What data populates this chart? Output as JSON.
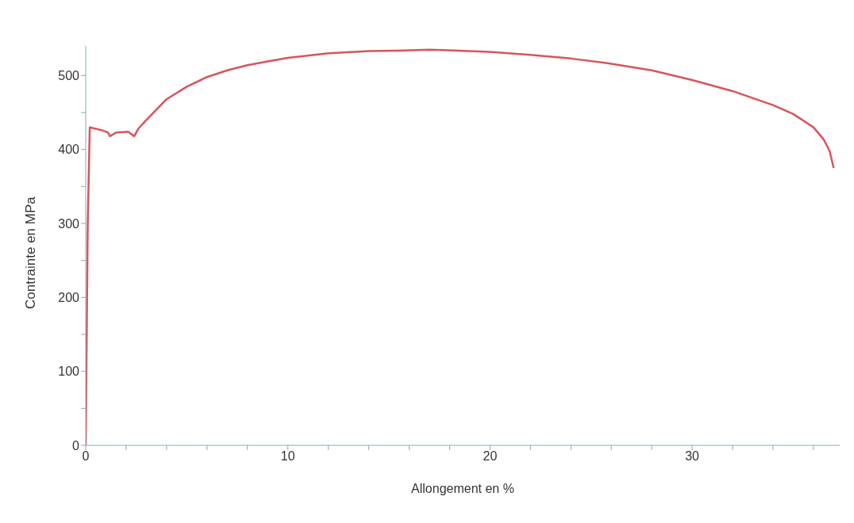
{
  "chart_data": {
    "type": "line",
    "xlabel": "Allongement en %",
    "ylabel": "Contrainte en MPa",
    "x": [
      0,
      0.1,
      0.2,
      0.5,
      0.8,
      1.1,
      1.2,
      1.5,
      2.1,
      2.4,
      2.6,
      3,
      4,
      5,
      6,
      7,
      8,
      9,
      10,
      12,
      14,
      16,
      17,
      18,
      20,
      22,
      24,
      26,
      28,
      30,
      32,
      34,
      35,
      36,
      36.5,
      36.8,
      37
    ],
    "series": [
      {
        "color": "#d9545c",
        "values": [
          0,
          300,
          430,
          428,
          426,
          423,
          418,
          423,
          424,
          418,
          428,
          440,
          468,
          485,
          498,
          507,
          514,
          519,
          524,
          530,
          533,
          534,
          535,
          534,
          532,
          528,
          523,
          516,
          507,
          494,
          479,
          460,
          448,
          430,
          414,
          398,
          375
        ]
      }
    ],
    "xlim": [
      0,
      37.3
    ],
    "ylim": [
      0,
      540
    ],
    "xticks": [
      0,
      {
        "value": 2,
        "label": null
      },
      {
        "value": 4,
        "label": null
      },
      {
        "value": 6,
        "label": null
      },
      {
        "value": 8,
        "label": null
      },
      10,
      {
        "value": 12,
        "label": null
      },
      {
        "value": 14,
        "label": null
      },
      {
        "value": 16,
        "label": null
      },
      {
        "value": 18,
        "label": null
      },
      20,
      {
        "value": 22,
        "label": null
      },
      {
        "value": 24,
        "label": null
      },
      {
        "value": 26,
        "label": null
      },
      {
        "value": 28,
        "label": null
      },
      30,
      {
        "value": 32,
        "label": null
      },
      {
        "value": 34,
        "label": null
      },
      {
        "value": 36,
        "label": null
      }
    ],
    "yticks": [
      0,
      {
        "value": 50,
        "label": null
      },
      100,
      {
        "value": 150,
        "label": null
      },
      200,
      {
        "value": 250,
        "label": null
      },
      300,
      {
        "value": 350,
        "label": null
      },
      400,
      {
        "value": 450,
        "label": null
      },
      500
    ],
    "grid": false,
    "legend": false,
    "marker": "none",
    "line_style": "solid"
  }
}
